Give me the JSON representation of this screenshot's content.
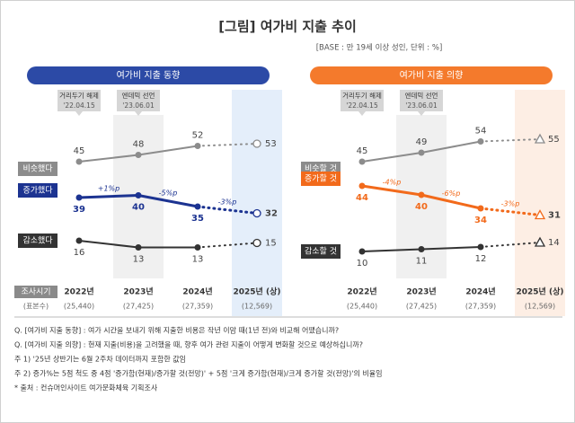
{
  "title": "[그림] 여가비 지출 추이",
  "subtitle": "[BASE : 만 19세 이상 성인, 단위 : %]",
  "row_labels": [
    "조사시기",
    "(표본수)"
  ],
  "chart_data": [
    {
      "type": "line",
      "title": "여가비 지출 동향",
      "header_color": "#2c4aa6",
      "highlight_color": "#e4eefa",
      "forecast_marker": "circle",
      "categories": [
        "2022년",
        "2023년",
        "2024년",
        "2025년 (상)"
      ],
      "sample_sizes": [
        "(25,440)",
        "(27,425)",
        "(27,359)",
        "(12,569)"
      ],
      "annotations": [
        {
          "label": "거리두기 해제",
          "date": "'22.04.15"
        },
        {
          "label": "엔데믹 선언",
          "date": "'23.06.01"
        }
      ],
      "series": [
        {
          "name": "비슷했다",
          "color": "#8c8c8c",
          "values": [
            45,
            48,
            52,
            53
          ]
        },
        {
          "name": "증가했다",
          "color": "#1c3391",
          "values": [
            39,
            40,
            35,
            32
          ],
          "change_labels": [
            "+1%p",
            "-5%p",
            "-3%p"
          ]
        },
        {
          "name": "감소했다",
          "color": "#333333",
          "values": [
            16,
            13,
            13,
            15
          ]
        }
      ]
    },
    {
      "type": "line",
      "title": "여가비 지출 의향",
      "header_color": "#f47a2c",
      "highlight_color": "#fdeee4",
      "forecast_marker": "triangle",
      "categories": [
        "2022년",
        "2023년",
        "2024년",
        "2025년 (상)"
      ],
      "sample_sizes": [
        "(25,440)",
        "(27,425)",
        "(27,359)",
        "(12,569)"
      ],
      "annotations": [
        {
          "label": "거리두기 해제",
          "date": "'22.04.15"
        },
        {
          "label": "엔데믹 선언",
          "date": "'23.06.01"
        }
      ],
      "series": [
        {
          "name": "비슷할 것",
          "color": "#8c8c8c",
          "values": [
            45,
            49,
            54,
            55
          ]
        },
        {
          "name": "증가할 것",
          "color": "#f26a1b",
          "values": [
            44,
            40,
            34,
            31
          ],
          "change_labels": [
            "-4%p",
            "-6%p",
            "-3%p"
          ]
        },
        {
          "name": "감소할 것",
          "color": "#333333",
          "values": [
            10,
            11,
            12,
            14
          ]
        }
      ]
    }
  ],
  "notes": [
    "Q. [여가비 지출 동향] : 여가 시간을 보내기 위해 지출한 비용은 작년 이맘 때(1년 전)와 비교해 어땠습니까?",
    "Q. [여가비 지출 의향] : 현재 지출(비용)을 고려했을 때, 향후 여가 관련 지출이 어떻게 변화할 것으로 예상하십니까?",
    "주 1) '25년 상반기는 6월 2주차 데이터까지 포함한 값임",
    "주 2) 증가%는 5점 척도 중 4점 '증가함(현재)/증가할 것(전망)' + 5점 '크게 증가함(현재)/크게 증가할 것(전망)'의 비율임",
    "* 출처 : 컨슈머인사이트 여가문화체육 기획조사"
  ]
}
